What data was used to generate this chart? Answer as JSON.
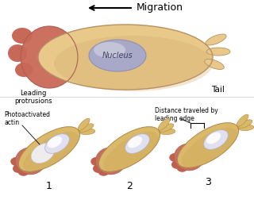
{
  "bg_color": "#ffffff",
  "migration_text": "Migration",
  "cell_body_color": "#e8c98a",
  "cell_leading_color": "#c87060",
  "nucleus_color": "#a8a8c8",
  "nucleus_highlight": "#d0d0e0",
  "label_leading": "Leading\nprotrusions",
  "label_tail": "Tail",
  "label_photoactivated": "Photoactivated\nactin",
  "label_distance": "Distance traveled by\nleading edge",
  "small_body_color": "#dab96a",
  "small_leading_color": "#c87060"
}
